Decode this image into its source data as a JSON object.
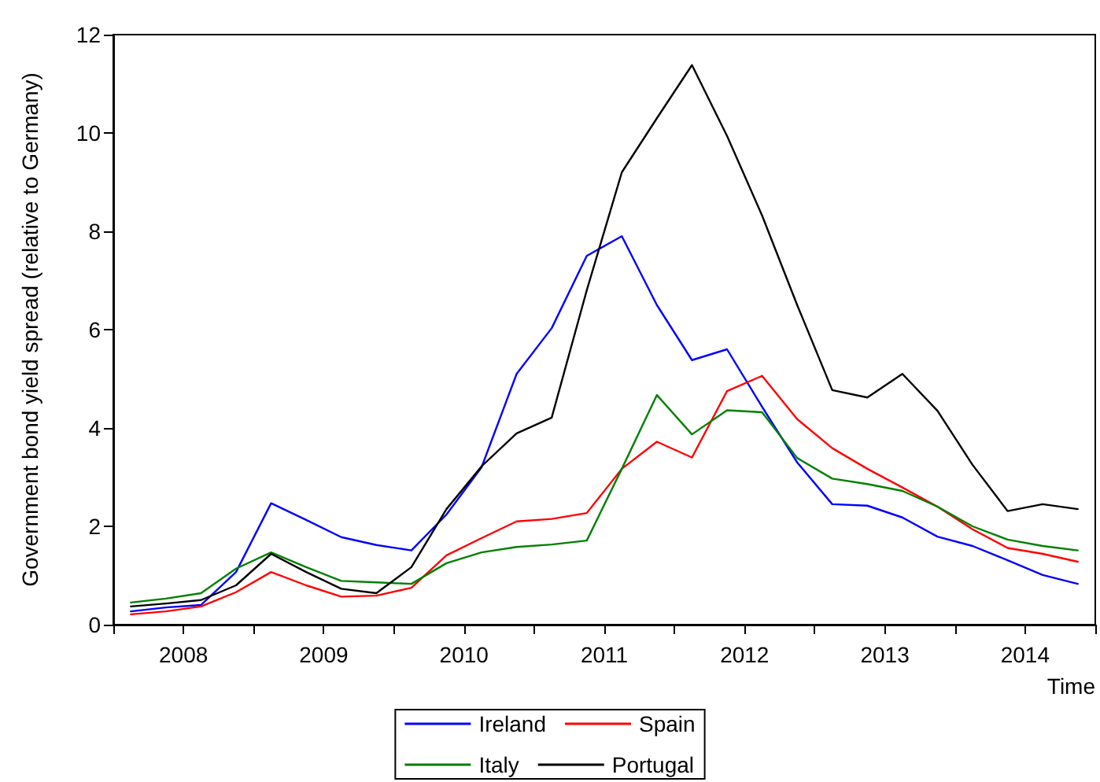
{
  "chart_data": {
    "type": "line",
    "xlabel": "Time",
    "ylabel": "Government bond yield spread (relative to Germany)",
    "x": [
      2008.125,
      2008.375,
      2008.625,
      2008.875,
      2009.125,
      2009.375,
      2009.625,
      2009.875,
      2010.125,
      2010.375,
      2010.625,
      2010.875,
      2011.125,
      2011.375,
      2011.625,
      2011.875,
      2012.125,
      2012.375,
      2012.625,
      2012.875,
      2013.125,
      2013.375,
      2013.625,
      2013.875,
      2014.125,
      2014.375,
      2014.625,
      2014.875
    ],
    "xlim": [
      2008,
      2015
    ],
    "xticks": [
      {
        "value": 2008,
        "label": null
      },
      {
        "value": 2008.5,
        "label": "2008"
      },
      {
        "value": 2009,
        "label": null
      },
      {
        "value": 2009.5,
        "label": "2009"
      },
      {
        "value": 2010,
        "label": null
      },
      {
        "value": 2010.5,
        "label": "2010"
      },
      {
        "value": 2011,
        "label": null
      },
      {
        "value": 2011.5,
        "label": "2011"
      },
      {
        "value": 2012,
        "label": null
      },
      {
        "value": 2012.5,
        "label": "2012"
      },
      {
        "value": 2013,
        "label": null
      },
      {
        "value": 2013.5,
        "label": "2013"
      },
      {
        "value": 2014,
        "label": null
      },
      {
        "value": 2014.5,
        "label": "2014"
      },
      {
        "value": 2015,
        "label": null
      }
    ],
    "ylim": [
      0,
      12
    ],
    "yticks": [
      0,
      2,
      4,
      6,
      8,
      10,
      12
    ],
    "grid": false,
    "legend": "bottom",
    "marker": "none",
    "line_style": "solid",
    "series": [
      {
        "name": "Ireland",
        "color": "#0000ff",
        "values": [
          0.27,
          0.35,
          0.4,
          1.07,
          2.47,
          2.13,
          1.78,
          1.62,
          1.51,
          2.24,
          3.2,
          5.1,
          6.03,
          7.5,
          7.9,
          6.5,
          5.38,
          5.6,
          4.43,
          3.3,
          2.45,
          2.42,
          2.18,
          1.79,
          1.6,
          1.31,
          1.01,
          0.83
        ]
      },
      {
        "name": "Spain",
        "color": "#ff0000",
        "values": [
          0.21,
          0.27,
          0.37,
          0.66,
          1.07,
          0.8,
          0.57,
          0.59,
          0.75,
          1.41,
          1.76,
          2.1,
          2.15,
          2.27,
          3.17,
          3.72,
          3.4,
          4.75,
          5.06,
          4.18,
          3.59,
          3.17,
          2.79,
          2.4,
          1.94,
          1.56,
          1.44,
          1.28
        ]
      },
      {
        "name": "Italy",
        "color": "#008000",
        "values": [
          0.45,
          0.53,
          0.64,
          1.14,
          1.47,
          1.17,
          0.89,
          0.86,
          0.83,
          1.25,
          1.47,
          1.58,
          1.63,
          1.71,
          3.17,
          4.67,
          3.87,
          4.36,
          4.32,
          3.39,
          2.97,
          2.86,
          2.72,
          2.4,
          2.0,
          1.73,
          1.6,
          1.51
        ]
      },
      {
        "name": "Portugal",
        "color": "#000000",
        "values": [
          0.37,
          0.43,
          0.5,
          0.8,
          1.44,
          1.07,
          0.73,
          0.64,
          1.17,
          2.35,
          3.22,
          3.89,
          4.21,
          6.8,
          9.2,
          10.3,
          11.38,
          9.94,
          8.32,
          6.5,
          4.77,
          4.62,
          5.1,
          4.35,
          3.25,
          2.31,
          2.45,
          2.35
        ]
      }
    ]
  }
}
